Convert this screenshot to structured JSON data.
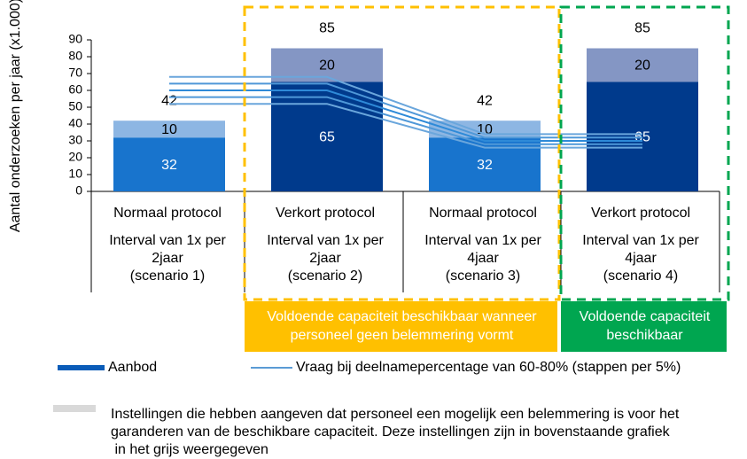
{
  "chart_data": {
    "type": "bar",
    "y_label": "Aantal onderzoeken per jaar (x1.000)",
    "ylim": [
      0,
      90
    ],
    "yticks": [
      0,
      10,
      20,
      30,
      40,
      50,
      60,
      70,
      80,
      90
    ],
    "categories": [
      "Normaal protocol",
      "Verkort protocol",
      "Normaal protocol",
      "Verkort protocol"
    ],
    "category_details": [
      [
        "Interval van 1x per",
        "2jaar",
        "(scenario 1)"
      ],
      [
        "Interval van 1x per",
        "2jaar",
        "(scenario 2)"
      ],
      [
        "Interval van 1x per",
        "4jaar",
        "(scenario 3)"
      ],
      [
        "Interval van 1x per",
        "4jaar",
        "(scenario 4)"
      ]
    ],
    "series": [
      {
        "name": "Aanbod",
        "color": "#0a5cb8",
        "colors": [
          "#1874cd",
          "#003a8c",
          "#1874cd",
          "#003a8c"
        ],
        "values": [
          32,
          65,
          32,
          65
        ]
      },
      {
        "colors": [
          "#8db6e3",
          "#8496c4",
          "#8db6e3",
          "#8496c4"
        ],
        "values": [
          10,
          20,
          10,
          20
        ]
      }
    ],
    "total_labels": [
      42,
      85,
      42,
      85
    ],
    "demand": {
      "name": "Vraag bij deelnamepercentage van 60-80% (stappen per 5%)",
      "color": "#5b9bd5",
      "series": [
        {
          "color": "#6aa6dc",
          "values": [
            68,
            68,
            34,
            34
          ]
        },
        {
          "color": "#4f98d8",
          "values": [
            64,
            64,
            32,
            32
          ]
        },
        {
          "color": "#2e8ad8",
          "values": [
            60,
            60,
            30,
            30
          ]
        },
        {
          "color": "#4f98d8",
          "values": [
            56,
            56,
            28,
            28
          ]
        },
        {
          "color": "#6aa6dc",
          "values": [
            52,
            52,
            26,
            26
          ]
        }
      ]
    },
    "banners": [
      {
        "color": "#ffc000",
        "lines": [
          "Voldoende capaciteit beschikbaar wanneer",
          "personeel geen belemmering vormt"
        ]
      },
      {
        "color": "#00a650",
        "lines": [
          "Voldoende capaciteit",
          "beschikbaar"
        ]
      }
    ],
    "note": {
      "color": "#d9d9d9",
      "lines": [
        "Instellingen die hebben aangeven dat personeel een mogelijk een belemmering is voor het",
        "garanderen van de beschikbare capaciteit. Deze instellingen zijn in bovenstaande grafiek",
        " in het grijs weergegeven"
      ]
    }
  }
}
